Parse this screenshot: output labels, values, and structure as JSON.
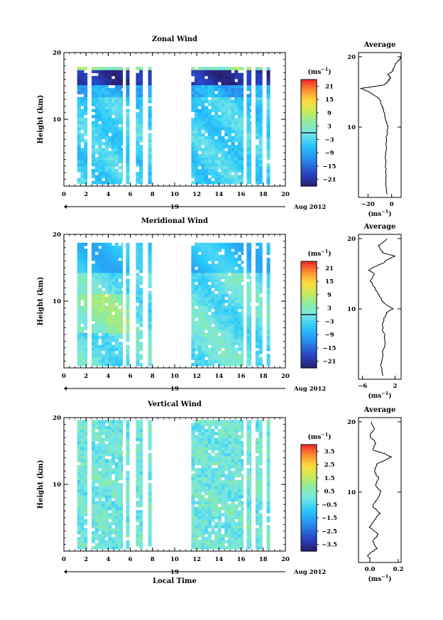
{
  "figure": {
    "xlabel": "Local Time",
    "date_label": "19",
    "date_suffix": "Aug 2012",
    "unit_text": "(ms",
    "unit_sup": "−1",
    "unit_close": ")"
  },
  "chart_data": [
    {
      "type": "heatmap",
      "title": "Zonal Wind",
      "ylabel": "Height (km)",
      "xlim": [
        0,
        20
      ],
      "ylim": [
        0,
        20
      ],
      "xticks": [
        0,
        2,
        4,
        6,
        8,
        10,
        12,
        14,
        16,
        18,
        20
      ],
      "xtick_labels": [
        "0",
        "2",
        "4",
        "6",
        "8",
        "10",
        "12",
        "14",
        "16",
        "18",
        "20"
      ],
      "yticks": [
        10,
        20
      ],
      "ytick_labels": [
        "10",
        "20"
      ],
      "data_time_blocks": [
        [
          1.2,
          2.1
        ],
        [
          2.5,
          5.3
        ],
        [
          5.6,
          5.9
        ],
        [
          6.5,
          7.1
        ],
        [
          7.6,
          7.9
        ],
        [
          11.5,
          16.2
        ],
        [
          16.5,
          16.9
        ],
        [
          17.3,
          17.9
        ],
        [
          18.3,
          18.6
        ]
      ],
      "height_range": [
        0.3,
        17.8
      ],
      "colorbar": {
        "range": [
          -24,
          24
        ],
        "ticks": [
          21,
          15,
          9,
          3,
          -3,
          -9,
          -15,
          -21
        ],
        "tick_labels": [
          "21",
          "15",
          "9",
          "3",
          "−3",
          "−9",
          "−15",
          "−21"
        ],
        "zero_line": 0
      },
      "average_profile": {
        "title": "Average",
        "xlim": [
          -28,
          8
        ],
        "xticks": [
          -20,
          0
        ],
        "xtick_labels": [
          "−20",
          "0"
        ],
        "height": [
          0.5,
          2,
          4,
          6,
          8,
          10,
          11,
          12,
          13,
          14,
          15,
          15.5,
          16,
          16.5,
          17,
          17.5,
          18,
          19,
          19.5,
          20
        ],
        "value": [
          -4,
          -4.5,
          -5,
          -5,
          -4.5,
          -3,
          -5,
          -6,
          -8,
          -10,
          -19,
          -26,
          -6,
          -3,
          -1,
          -3,
          1,
          3,
          6,
          8
        ]
      }
    },
    {
      "type": "heatmap",
      "title": "Meridional Wind",
      "ylabel": "Height (km)",
      "xlim": [
        0,
        20
      ],
      "ylim": [
        0,
        20
      ],
      "xticks": [
        0,
        2,
        4,
        6,
        8,
        10,
        12,
        14,
        16,
        18,
        20
      ],
      "xtick_labels": [
        "0",
        "2",
        "4",
        "6",
        "8",
        "10",
        "12",
        "14",
        "16",
        "18",
        "20"
      ],
      "yticks": [
        10,
        20
      ],
      "ytick_labels": [
        "10",
        "20"
      ],
      "data_time_blocks": [
        [
          1.2,
          2.1
        ],
        [
          2.5,
          5.3
        ],
        [
          5.6,
          5.9
        ],
        [
          6.5,
          7.1
        ],
        [
          7.6,
          7.9
        ],
        [
          11.5,
          16.2
        ],
        [
          16.5,
          16.9
        ],
        [
          17.3,
          17.9
        ],
        [
          18.3,
          18.6
        ]
      ],
      "height_range": [
        0.3,
        18.5
      ],
      "colorbar": {
        "range": [
          -24,
          24
        ],
        "ticks": [
          21,
          15,
          9,
          3,
          -3,
          -9,
          -15,
          -21
        ],
        "tick_labels": [
          "21",
          "15",
          "9",
          "3",
          "−3",
          "−9",
          "−15",
          "−21"
        ],
        "zero_line": 0
      },
      "average_profile": {
        "title": "Average",
        "xlim": [
          -7,
          3.5
        ],
        "xticks": [
          -6,
          2
        ],
        "xtick_labels": [
          "−6",
          "2"
        ],
        "height": [
          0.5,
          2,
          3,
          4,
          5,
          6,
          7,
          8,
          9,
          9.5,
          10,
          11,
          12,
          13,
          14,
          15,
          15.5,
          16,
          16.5,
          17,
          17.5,
          18,
          19,
          20
        ],
        "value": [
          -1,
          -1.5,
          -1,
          -1,
          -0.5,
          -0.5,
          -1,
          -1,
          -0.5,
          0,
          1.5,
          -1,
          -2,
          -3,
          -4,
          -3,
          -4.5,
          -3,
          -1,
          0,
          2,
          -1,
          -2,
          0
        ]
      }
    },
    {
      "type": "heatmap",
      "title": "Vertical Wind",
      "ylabel": "Height (km)",
      "xlim": [
        0,
        20
      ],
      "ylim": [
        0,
        20
      ],
      "xticks": [
        0,
        2,
        4,
        6,
        8,
        10,
        12,
        14,
        16,
        18,
        20
      ],
      "xtick_labels": [
        "0",
        "2",
        "4",
        "6",
        "8",
        "10",
        "12",
        "14",
        "16",
        "18",
        "20"
      ],
      "yticks": [
        10,
        20
      ],
      "ytick_labels": [
        "10",
        "20"
      ],
      "data_time_blocks": [
        [
          1.2,
          2.1
        ],
        [
          2.5,
          5.3
        ],
        [
          5.6,
          5.9
        ],
        [
          6.5,
          7.1
        ],
        [
          7.6,
          7.9
        ],
        [
          11.5,
          16.2
        ],
        [
          16.5,
          16.9
        ],
        [
          17.3,
          17.9
        ],
        [
          18.3,
          18.6
        ]
      ],
      "height_range": [
        0.3,
        19.5
      ],
      "colorbar": {
        "range": [
          -4,
          4
        ],
        "ticks": [
          3.5,
          2.5,
          1.5,
          0.5,
          -0.5,
          -1.5,
          -2.5,
          -3.5
        ],
        "tick_labels": [
          "3.5",
          "2.5",
          "1.5",
          "0.5",
          "−0.5",
          "−1.5",
          "−2.5",
          "−3.5"
        ],
        "zero_line": null
      },
      "average_profile": {
        "title": "Average",
        "xlim": [
          -0.08,
          0.22
        ],
        "xticks": [
          0.0,
          0.2
        ],
        "xtick_labels": [
          "0.0",
          "0.2"
        ],
        "height": [
          0.5,
          1,
          2,
          3,
          4,
          5,
          6,
          7,
          8,
          9,
          10,
          11,
          12,
          13,
          14,
          15,
          15.5,
          16,
          17,
          18,
          19,
          20
        ],
        "value": [
          0.0,
          -0.02,
          0.05,
          0.02,
          0.06,
          0.0,
          0.03,
          0.07,
          0.02,
          0.05,
          0.08,
          0.04,
          0.06,
          0.03,
          0.05,
          0.15,
          0.1,
          0.02,
          0.04,
          0.0,
          0.03,
          0.01
        ]
      }
    }
  ]
}
